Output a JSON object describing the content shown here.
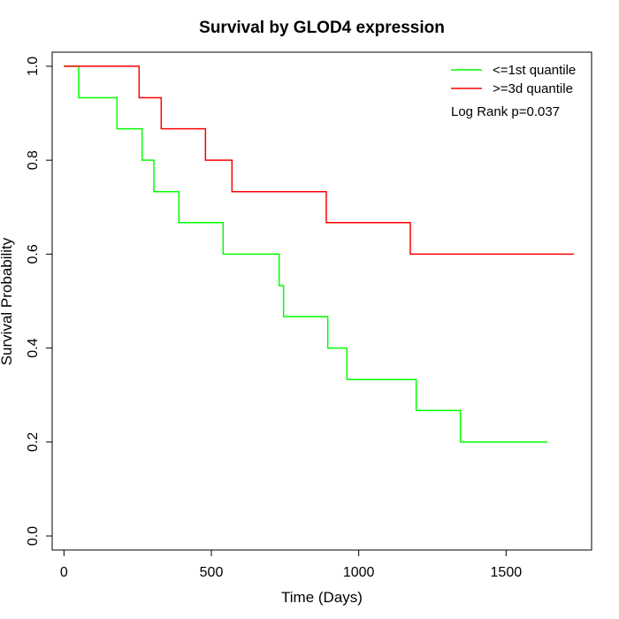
{
  "chart_data": {
    "type": "line",
    "title": "Survival by GLOD4 expression",
    "xlabel": "Time (Days)",
    "ylabel": "Survival Probability",
    "xlim": [
      -40,
      1790
    ],
    "ylim": [
      -0.03,
      1.03
    ],
    "x_ticks": [
      0,
      500,
      1000,
      1500
    ],
    "y_ticks": [
      0.0,
      0.2,
      0.4,
      0.6,
      0.8,
      1.0
    ],
    "x_tick_labels": [
      "0",
      "500",
      "1000",
      "1500"
    ],
    "y_tick_labels": [
      "0.0",
      "0.2",
      "0.4",
      "0.6",
      "0.8",
      "1.0"
    ],
    "grid": false,
    "legend_position": "top-right",
    "annotation": "Log Rank p=0.037",
    "series": [
      {
        "name": "<=1st quantile",
        "color": "#00ff00",
        "step": true,
        "x": [
          0,
          50,
          180,
          265,
          305,
          390,
          540,
          730,
          745,
          895,
          960,
          1195,
          1345,
          1640
        ],
        "y": [
          1.0,
          0.933,
          0.867,
          0.8,
          0.733,
          0.667,
          0.6,
          0.533,
          0.467,
          0.4,
          0.333,
          0.267,
          0.2,
          0.2
        ]
      },
      {
        "name": ">=3d quantile",
        "color": "#ff0000",
        "step": true,
        "x": [
          0,
          255,
          330,
          480,
          570,
          890,
          1175,
          1730
        ],
        "y": [
          1.0,
          0.933,
          0.867,
          0.8,
          0.733,
          0.667,
          0.6,
          0.6
        ]
      }
    ]
  }
}
